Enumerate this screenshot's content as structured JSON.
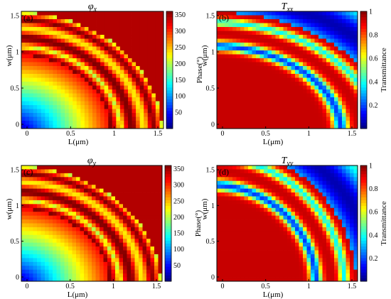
{
  "chart_data": [
    {
      "panel": "(a)",
      "type": "heatmap",
      "title_main": "φ",
      "title_sub": "x",
      "xlabel": "L(μm)",
      "ylabel": "w(μm)",
      "xlim": [
        0,
        1.5
      ],
      "ylim": [
        0,
        1.5
      ],
      "xticks": [
        "0",
        "0.5",
        "1",
        "1.5"
      ],
      "yticks": [
        "0",
        "0.5",
        "1",
        "1.5"
      ],
      "quantity": "phase",
      "cbar_label": "Phase(°)",
      "cbar_range": [
        0,
        360
      ],
      "cbar_ticks": [
        "50",
        "100",
        "150",
        "200",
        "250",
        "300",
        "350"
      ],
      "resonance_radius": 1.05
    },
    {
      "panel": "(b)",
      "type": "heatmap",
      "title_main": "T",
      "title_sub": "xx",
      "xlabel": "L(μm)",
      "ylabel": "w(μm)",
      "xlim": [
        0,
        1.5
      ],
      "ylim": [
        0,
        1.5
      ],
      "xticks": [
        "0",
        "0.5",
        "1",
        "1.5"
      ],
      "yticks": [
        "0",
        "0.5",
        "1",
        "1.5"
      ],
      "quantity": "transmittance",
      "cbar_label": "Transmittance",
      "cbar_range": [
        0,
        1
      ],
      "cbar_ticks": [
        "0.2",
        "0.4",
        "0.6",
        "0.8",
        "1"
      ],
      "resonance_radius": 1.05
    },
    {
      "panel": "(c)",
      "type": "heatmap",
      "title_main": "φ",
      "title_sub": "y",
      "xlabel": "L(μm)",
      "ylabel": "w(μm)",
      "xlim": [
        0,
        1.5
      ],
      "ylim": [
        0,
        1.5
      ],
      "xticks": [
        "0",
        "0.5",
        "1",
        "1.5"
      ],
      "yticks": [
        "0",
        "0.5",
        "1",
        "1.5"
      ],
      "quantity": "phase",
      "cbar_label": "Phase(°)",
      "cbar_range": [
        0,
        360
      ],
      "cbar_ticks": [
        "50",
        "100",
        "150",
        "200",
        "250",
        "300",
        "350"
      ],
      "resonance_radius": 1.05
    },
    {
      "panel": "(d)",
      "type": "heatmap",
      "title_main": "T",
      "title_sub": "yy",
      "xlabel": "L(μm)",
      "ylabel": "w(μm)",
      "xlim": [
        0,
        1.5
      ],
      "ylim": [
        0,
        1.5
      ],
      "xticks": [
        "0",
        "0.5",
        "1",
        "1.5"
      ],
      "yticks": [
        "0",
        "0.5",
        "1",
        "1.5"
      ],
      "quantity": "transmittance",
      "cbar_label": "Transmittance",
      "cbar_range": [
        0,
        1
      ],
      "cbar_ticks": [
        "0.2",
        "0.4",
        "0.6",
        "0.8",
        "1"
      ],
      "resonance_radius": 1.05
    }
  ]
}
